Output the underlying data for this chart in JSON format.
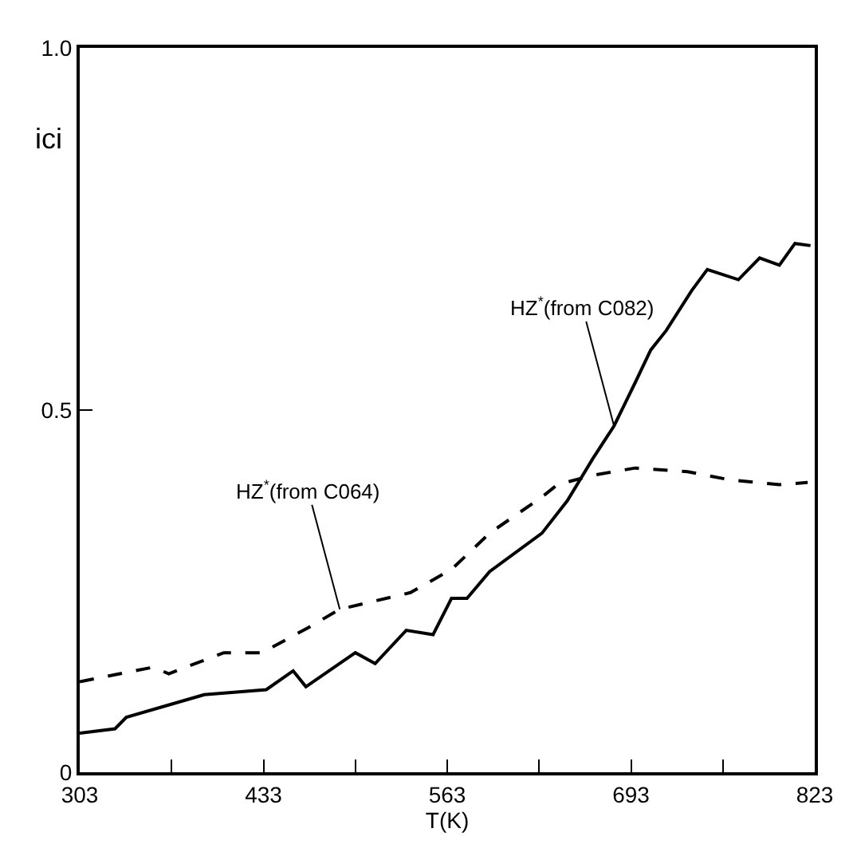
{
  "chart_data": {
    "type": "line",
    "xlabel": "T(K)",
    "ylabel": "ici",
    "xlim": [
      303,
      823
    ],
    "ylim": [
      0,
      1.0
    ],
    "xticks": [
      303,
      {
        "value": 368,
        "label": null
      },
      433,
      {
        "value": 498,
        "label": null
      },
      563,
      {
        "value": 628,
        "label": null
      },
      693,
      {
        "value": 758,
        "label": null
      },
      823
    ],
    "yticks": [
      0,
      0.5,
      {
        "value": 1.0,
        "label": "1.0"
      }
    ],
    "marker": "none",
    "series": [
      {
        "color": "#000000",
        "line_style": "solid",
        "x": [
          303,
          328,
          336,
          391,
          435,
          454,
          463,
          498,
          512,
          534,
          553,
          566,
          577,
          593,
          630,
          648,
          666,
          681,
          696,
          707,
          718,
          736,
          747,
          769,
          784,
          798,
          809,
          820
        ],
        "values": [
          0.054,
          0.06,
          0.076,
          0.107,
          0.114,
          0.14,
          0.118,
          0.165,
          0.15,
          0.196,
          0.19,
          0.24,
          0.24,
          0.277,
          0.33,
          0.375,
          0.433,
          0.478,
          0.538,
          0.583,
          0.61,
          0.665,
          0.694,
          0.68,
          0.71,
          0.7,
          0.73,
          0.727
        ]
      },
      {
        "color": "#000000",
        "line_style": "dashed",
        "x": [
          303,
          355,
          366,
          405,
          432,
          465,
          487,
          537,
          566,
          593,
          630,
          641,
          666,
          696,
          733,
          762,
          798,
          818
        ],
        "values": [
          0.125,
          0.145,
          0.136,
          0.165,
          0.165,
          0.2,
          0.225,
          0.248,
          0.28,
          0.33,
          0.38,
          0.397,
          0.41,
          0.42,
          0.415,
          0.404,
          0.397,
          0.4
        ]
      }
    ],
    "annotations": [
      {
        "text": "HZ$^{*}$(from C082)",
        "x": 681,
        "y": 0.478
      },
      {
        "text": "HZ$^{*}$(from C064)",
        "x": 487,
        "y": 0.225
      }
    ]
  }
}
